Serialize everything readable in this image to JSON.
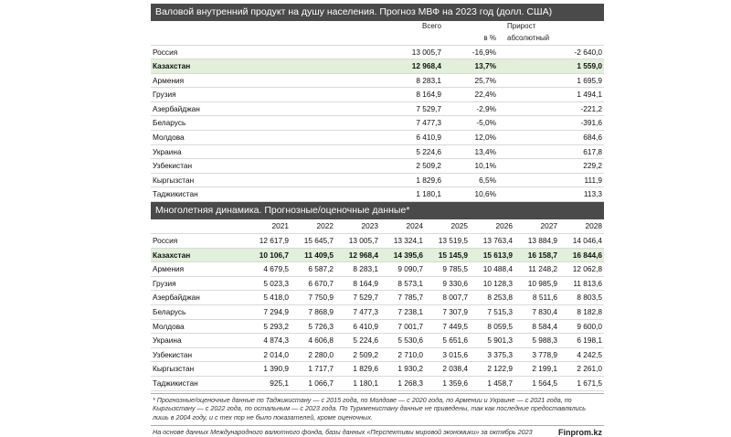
{
  "table1": {
    "title": "Валовой внутренний продукт на душу населения. Прогноз МВФ на 2023 год (долл. США)",
    "headers": {
      "total": "Всего",
      "growth": "Прирост",
      "percent": "в %",
      "absolute": "абсолютный"
    },
    "rows": [
      {
        "country": "Россия",
        "total": "13 005,7",
        "percent": "-16,9%",
        "absolute": "-2 640,0"
      },
      {
        "country": "Казахстан",
        "total": "12 968,4",
        "percent": "13,7%",
        "absolute": "1 559,0"
      },
      {
        "country": "Армения",
        "total": "8 283,1",
        "percent": "25,7%",
        "absolute": "1 695,9"
      },
      {
        "country": "Грузия",
        "total": "8 164,9",
        "percent": "22,4%",
        "absolute": "1 494,1"
      },
      {
        "country": "Азербайджан",
        "total": "7 529,7",
        "percent": "-2,9%",
        "absolute": "-221,2"
      },
      {
        "country": "Беларусь",
        "total": "7 477,3",
        "percent": "-5,0%",
        "absolute": "-391,6"
      },
      {
        "country": "Молдова",
        "total": "6 410,9",
        "percent": "12,0%",
        "absolute": "684,6"
      },
      {
        "country": "Украина",
        "total": "5 224,6",
        "percent": "13,4%",
        "absolute": "617,8"
      },
      {
        "country": "Узбекистан",
        "total": "2 509,2",
        "percent": "10,1%",
        "absolute": "229,2"
      },
      {
        "country": "Кыргызстан",
        "total": "1 829,6",
        "percent": "6,5%",
        "absolute": "111,9"
      },
      {
        "country": "Таджикистан",
        "total": "1 180,1",
        "percent": "10,6%",
        "absolute": "113,3"
      }
    ]
  },
  "table2": {
    "title": "Многолетняя динамика. Прогнозные/оценочные данные*",
    "years": [
      "2021",
      "2022",
      "2023",
      "2024",
      "2025",
      "2026",
      "2027",
      "2028"
    ],
    "rows": [
      {
        "country": "Россия",
        "values": [
          "12 617,9",
          "15 645,7",
          "13 005,7",
          "13 324,1",
          "13 519,5",
          "13 763,4",
          "13 884,9",
          "14 046,4"
        ]
      },
      {
        "country": "Казахстан",
        "values": [
          "10 106,7",
          "11 409,5",
          "12 968,4",
          "14 395,6",
          "15 145,9",
          "15 613,9",
          "16 158,7",
          "16 844,6"
        ]
      },
      {
        "country": "Армения",
        "values": [
          "4 679,5",
          "6 587,2",
          "8 283,1",
          "9 090,7",
          "9 785,5",
          "10 488,4",
          "11 248,2",
          "12 062,8"
        ]
      },
      {
        "country": "Грузия",
        "values": [
          "5 023,3",
          "6 670,7",
          "8 164,9",
          "8 573,1",
          "9 330,6",
          "10 128,3",
          "10 985,9",
          "11 813,6"
        ]
      },
      {
        "country": "Азербайджан",
        "values": [
          "5 418,0",
          "7 750,9",
          "7 529,7",
          "7 785,7",
          "8 007,7",
          "8 253,8",
          "8 511,6",
          "8 803,5"
        ]
      },
      {
        "country": "Беларусь",
        "values": [
          "7 294,9",
          "7 868,9",
          "7 477,3",
          "7 238,1",
          "7 307,9",
          "7 515,3",
          "7 830,4",
          "8 182,8"
        ]
      },
      {
        "country": "Молдова",
        "values": [
          "5 293,2",
          "5 726,3",
          "6 410,9",
          "7 001,7",
          "7 449,5",
          "8 059,5",
          "8 584,4",
          "9 600,0"
        ]
      },
      {
        "country": "Украина",
        "values": [
          "4 874,3",
          "4 606,8",
          "5 224,6",
          "5 530,6",
          "5 651,6",
          "5 901,3",
          "5 988,3",
          "6 198,1"
        ]
      },
      {
        "country": "Узбекистан",
        "values": [
          "2 014,0",
          "2 280,0",
          "2 509,2",
          "2 710,0",
          "3 015,6",
          "3 375,3",
          "3 778,9",
          "4 242,5"
        ]
      },
      {
        "country": "Кыргызстан",
        "values": [
          "1 390,9",
          "1 717,7",
          "1 829,6",
          "1 930,2",
          "2 038,4",
          "2 122,9",
          "2 199,1",
          "2 261,0"
        ]
      },
      {
        "country": "Таджикистан",
        "values": [
          "925,1",
          "1 066,7",
          "1 180,1",
          "1 268,3",
          "1 359,6",
          "1 458,7",
          "1 564,5",
          "1 671,5"
        ]
      }
    ]
  },
  "footnote": "* Прогнозные/оценочные данные по Таджикистану — с 2015 года, по Молдове — с 2020 года, по Армении и Украине — с 2021 года, по Кыргызстану — с 2022 года, по остальным — с 2023 года. По Туркменистану данные не приведены, так как последние предоставлялись лишь в 2004 году, и с тех пор не было показателей, кроме оценочных.",
  "source": "На основе данных Международного валютного фонда, базы данных «Перспективы мировой экономики» за октябрь 2023",
  "brand": "Finprom.kz",
  "highlight_color": "#e2efda"
}
